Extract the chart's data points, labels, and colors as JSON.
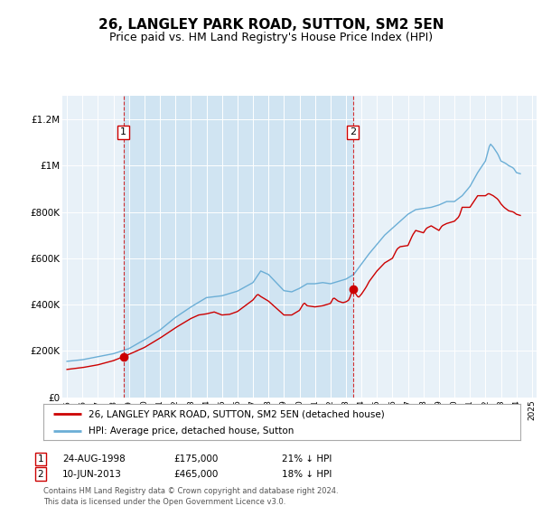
{
  "title": "26, LANGLEY PARK ROAD, SUTTON, SM2 5EN",
  "subtitle": "Price paid vs. HM Land Registry's House Price Index (HPI)",
  "title_fontsize": 11,
  "subtitle_fontsize": 9,
  "background_color": "#ffffff",
  "plot_bg_color": "#e8f1f8",
  "shade_color": "#d0e4f2",
  "grid_color": "#ffffff",
  "legend_line1": "26, LANGLEY PARK ROAD, SUTTON, SM2 5EN (detached house)",
  "legend_line2": "HPI: Average price, detached house, Sutton",
  "footer": "Contains HM Land Registry data © Crown copyright and database right 2024.\nThis data is licensed under the Open Government Licence v3.0.",
  "annotation1": {
    "label": "1",
    "date": "24-AUG-1998",
    "price": "£175,000",
    "pct": "21% ↓ HPI",
    "x_year": 1998.65
  },
  "annotation2": {
    "label": "2",
    "date": "10-JUN-2013",
    "price": "£465,000",
    "pct": "18% ↓ HPI",
    "x_year": 2013.44
  },
  "hpi_color": "#6baed6",
  "house_color": "#cc0000",
  "ylim": [
    0,
    1300000
  ],
  "xlim_start": 1994.7,
  "xlim_end": 2025.3,
  "yticks": [
    0,
    200000,
    400000,
    600000,
    800000,
    1000000,
    1200000
  ],
  "ytick_labels": [
    "£0",
    "£200K",
    "£400K",
    "£600K",
    "£800K",
    "£1M",
    "£1.2M"
  ],
  "xticks": [
    1995,
    1996,
    1997,
    1998,
    1999,
    2000,
    2001,
    2002,
    2003,
    2004,
    2005,
    2006,
    2007,
    2008,
    2009,
    2010,
    2011,
    2012,
    2013,
    2014,
    2015,
    2016,
    2017,
    2018,
    2019,
    2020,
    2021,
    2022,
    2023,
    2024,
    2025
  ],
  "ann1_price": 175000,
  "ann2_price": 465000
}
